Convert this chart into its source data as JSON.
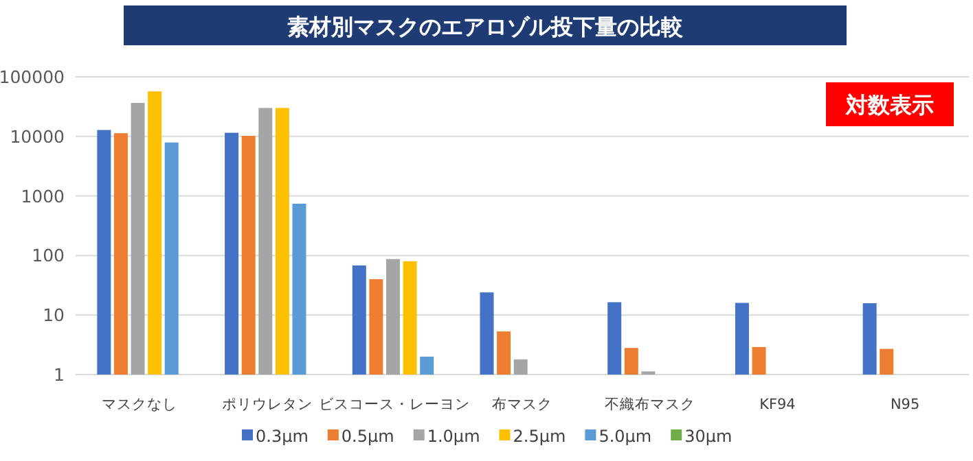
{
  "chart_data": {
    "type": "bar",
    "title": "素材別マスクのエアロゾル投下量の比較",
    "annotations": [
      "対数表示"
    ],
    "categories": [
      "マスクなし",
      "ポリウレタン",
      "ビスコース・レーヨン",
      "布マスク",
      "不織布マスク",
      "KF94",
      "N95"
    ],
    "series": [
      {
        "name": "0.3μm",
        "color": "#4472c4",
        "values": [
          12800,
          11500,
          68,
          24,
          16.4,
          16,
          15.8
        ]
      },
      {
        "name": "0.5μm",
        "color": "#ed7d31",
        "values": [
          11300,
          10200,
          40,
          5.3,
          2.8,
          2.9,
          2.7
        ]
      },
      {
        "name": "1.0μm",
        "color": "#a5a5a5",
        "values": [
          36500,
          30000,
          87,
          1.8,
          1.13,
          null,
          null
        ]
      },
      {
        "name": "2.5μm",
        "color": "#ffc000",
        "values": [
          57000,
          30000,
          80,
          null,
          null,
          null,
          null
        ]
      },
      {
        "name": "5.0μm",
        "color": "#5b9bd5",
        "values": [
          7900,
          740,
          2.0,
          null,
          null,
          null,
          null
        ]
      },
      {
        "name": "30μm",
        "color": "#70ad47",
        "values": [
          null,
          null,
          null,
          null,
          null,
          null,
          null
        ]
      }
    ],
    "log": true,
    "ylim": [
      1,
      100000
    ],
    "yticks": [
      1,
      10,
      100,
      1000,
      10000,
      100000
    ],
    "grid": "y",
    "legend": "bottom"
  }
}
